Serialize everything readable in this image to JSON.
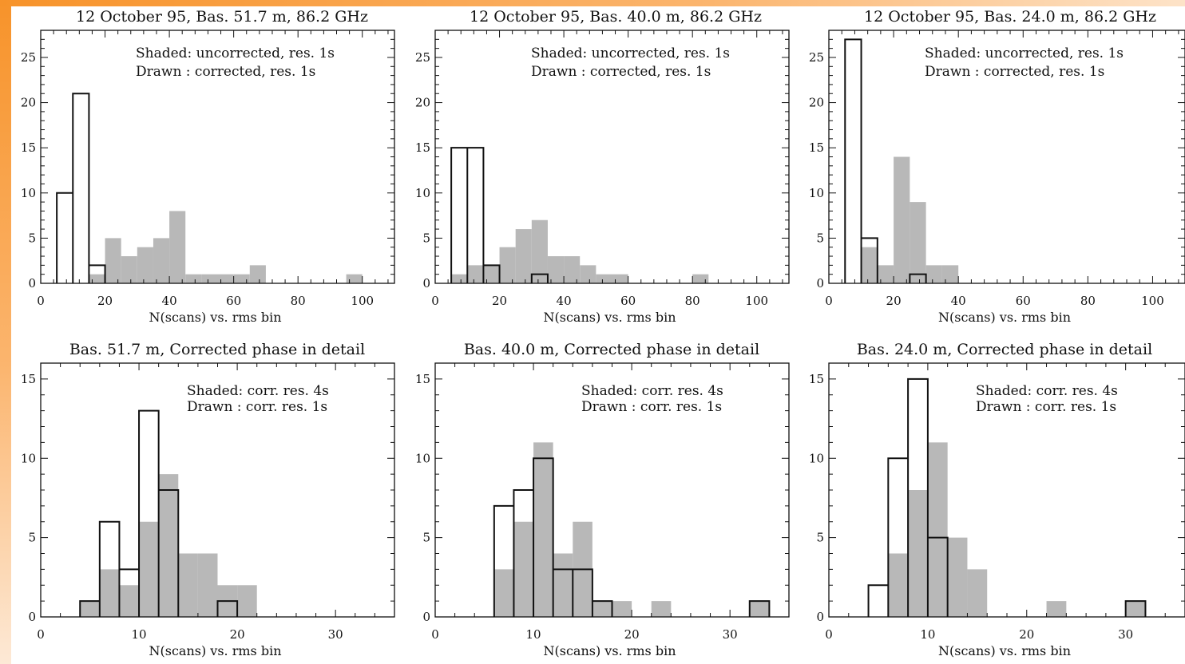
{
  "colors": {
    "frame_accent": "#f7932a",
    "shaded": "#b8b8b8",
    "drawn": "#111111",
    "background": "#ffffff"
  },
  "chart_data": [
    {
      "type": "bar",
      "title": "12 October 95, Bas. 51.7 m, 86.2 GHz",
      "xlabel": "N(scans) vs. rms bin",
      "notes": [
        "Shaded: uncorrected, res. 1s",
        "Drawn : corrected, res. 1s"
      ],
      "xlim": [
        0,
        110
      ],
      "ylim": [
        0,
        28
      ],
      "xticks": [
        0,
        20,
        40,
        60,
        80,
        100
      ],
      "yticks": [
        0,
        5,
        10,
        15,
        20,
        25
      ],
      "bin_start": 5,
      "bin_width": 5,
      "series": [
        {
          "style": "shaded",
          "values": [
            0,
            0,
            1,
            5,
            3,
            4,
            5,
            8,
            1,
            1,
            1,
            1,
            2,
            0,
            0,
            0,
            0,
            0,
            1,
            0,
            0
          ]
        },
        {
          "style": "drawn",
          "values": [
            10,
            21,
            2,
            0,
            0,
            0,
            0,
            0,
            0,
            0,
            0,
            0,
            0,
            0,
            0,
            0,
            0,
            0,
            0,
            0,
            0
          ]
        }
      ]
    },
    {
      "type": "bar",
      "title": "12 October 95, Bas. 40.0 m, 86.2 GHz",
      "xlabel": "N(scans) vs. rms bin",
      "notes": [
        "Shaded: uncorrected, res. 1s",
        "Drawn : corrected, res. 1s"
      ],
      "xlim": [
        0,
        110
      ],
      "ylim": [
        0,
        28
      ],
      "xticks": [
        0,
        20,
        40,
        60,
        80,
        100
      ],
      "yticks": [
        0,
        5,
        10,
        15,
        20,
        25
      ],
      "bin_start": 5,
      "bin_width": 5,
      "series": [
        {
          "style": "shaded",
          "values": [
            1,
            2,
            2,
            4,
            6,
            7,
            3,
            3,
            2,
            1,
            1,
            0,
            0,
            0,
            0,
            1,
            0,
            0,
            0,
            0,
            0
          ]
        },
        {
          "style": "drawn",
          "values": [
            15,
            15,
            2,
            0,
            0,
            1,
            0,
            0,
            0,
            0,
            0,
            0,
            0,
            0,
            0,
            0,
            0,
            0,
            0,
            0,
            0
          ]
        }
      ]
    },
    {
      "type": "bar",
      "title": "12 October 95, Bas. 24.0 m, 86.2 GHz",
      "xlabel": "N(scans) vs. rms bin",
      "notes": [
        "Shaded: uncorrected, res. 1s",
        "Drawn : corrected, res. 1s"
      ],
      "xlim": [
        0,
        110
      ],
      "ylim": [
        0,
        28
      ],
      "xticks": [
        0,
        20,
        40,
        60,
        80,
        100
      ],
      "yticks": [
        0,
        5,
        10,
        15,
        20,
        25
      ],
      "bin_start": 5,
      "bin_width": 5,
      "series": [
        {
          "style": "shaded",
          "values": [
            0,
            4,
            2,
            14,
            9,
            2,
            2,
            0,
            0,
            0,
            0,
            0,
            0,
            0,
            0,
            0,
            0,
            0,
            0,
            0,
            0
          ]
        },
        {
          "style": "drawn",
          "values": [
            27,
            5,
            0,
            0,
            1,
            0,
            0,
            0,
            0,
            0,
            0,
            0,
            0,
            0,
            0,
            0,
            0,
            0,
            0,
            0,
            0
          ]
        }
      ]
    },
    {
      "type": "bar",
      "title": "Bas. 51.7 m, Corrected phase in detail",
      "xlabel": "N(scans) vs. rms bin",
      "notes": [
        "Shaded: corr. res. 4s",
        "Drawn : corr. res. 1s"
      ],
      "xlim": [
        0,
        36
      ],
      "ylim": [
        0,
        16
      ],
      "xticks": [
        0,
        10,
        20,
        30
      ],
      "yticks": [
        0,
        5,
        10,
        15
      ],
      "bin_start": 4,
      "bin_width": 2,
      "series": [
        {
          "style": "shaded",
          "values": [
            1,
            3,
            2,
            6,
            9,
            4,
            4,
            2,
            2,
            0,
            0,
            0,
            0,
            0,
            0
          ]
        },
        {
          "style": "drawn",
          "values": [
            1,
            6,
            3,
            13,
            8,
            0,
            0,
            1,
            0,
            0,
            0,
            0,
            0,
            0,
            0
          ]
        }
      ]
    },
    {
      "type": "bar",
      "title": "Bas. 40.0 m, Corrected phase in detail",
      "xlabel": "N(scans) vs. rms bin",
      "notes": [
        "Shaded: corr. res. 4s",
        "Drawn : corr. res. 1s"
      ],
      "xlim": [
        0,
        36
      ],
      "ylim": [
        0,
        16
      ],
      "xticks": [
        0,
        10,
        20,
        30
      ],
      "yticks": [
        0,
        5,
        10,
        15
      ],
      "bin_start": 4,
      "bin_width": 2,
      "series": [
        {
          "style": "shaded",
          "values": [
            0,
            3,
            6,
            11,
            4,
            6,
            1,
            1,
            0,
            1,
            0,
            0,
            0,
            0,
            1
          ]
        },
        {
          "style": "drawn",
          "values": [
            0,
            7,
            8,
            10,
            3,
            3,
            1,
            0,
            0,
            0,
            0,
            0,
            0,
            0,
            1
          ]
        }
      ]
    },
    {
      "type": "bar",
      "title": "Bas. 24.0 m, Corrected phase in detail",
      "xlabel": "N(scans) vs. rms bin",
      "notes": [
        "Shaded: corr. res. 4s",
        "Drawn : corr. res. 1s"
      ],
      "xlim": [
        0,
        36
      ],
      "ylim": [
        0,
        16
      ],
      "xticks": [
        0,
        10,
        20,
        30
      ],
      "yticks": [
        0,
        5,
        10,
        15
      ],
      "bin_start": 4,
      "bin_width": 2,
      "series": [
        {
          "style": "shaded",
          "values": [
            0,
            4,
            8,
            11,
            5,
            3,
            0,
            0,
            0,
            1,
            0,
            0,
            0,
            1,
            0
          ]
        },
        {
          "style": "drawn",
          "values": [
            2,
            10,
            15,
            5,
            0,
            0,
            0,
            0,
            0,
            0,
            0,
            0,
            0,
            1,
            0
          ]
        }
      ]
    }
  ]
}
